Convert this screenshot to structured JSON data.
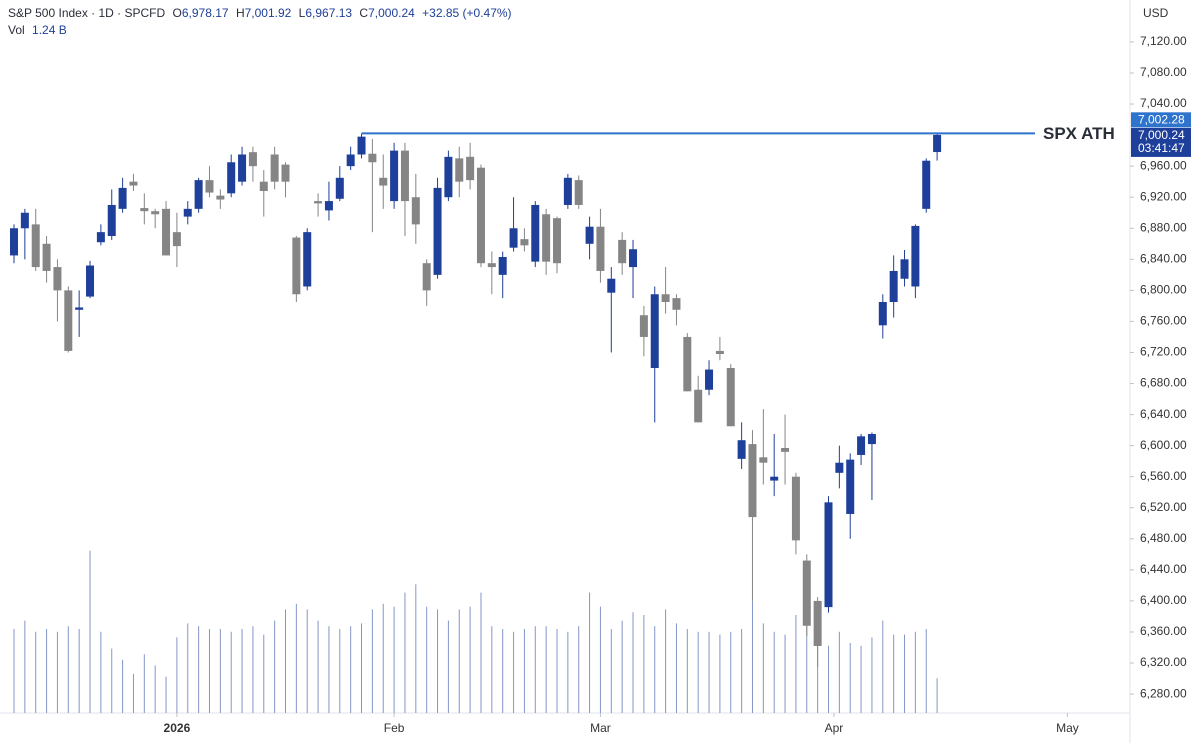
{
  "header": {
    "symbol": "S&P 500 Index · 1D · SPCFD",
    "ohlc": [
      {
        "key": "O",
        "value": "6,978.17"
      },
      {
        "key": "H",
        "value": "7,001.92"
      },
      {
        "key": "L",
        "value": "6,967.13"
      },
      {
        "key": "C",
        "value": "7,000.24"
      }
    ],
    "change": "+32.85 (+0.47%)",
    "vol_key": "Vol",
    "vol_value": "1.24 B",
    "currency": "USD"
  },
  "chart_data": {
    "type": "candlestick",
    "up_color": "#1e3f9a",
    "down_color": "#858585",
    "volume_color": "#8496c8",
    "open": [
      6845,
      6880,
      6885,
      6860,
      6830,
      6800,
      6775,
      6792,
      6862,
      6870,
      6905,
      6940,
      6906,
      6902,
      6905,
      6875,
      6895,
      6905,
      6942,
      6922,
      6925,
      6940,
      6978,
      6940,
      6975,
      6962,
      6868,
      6805,
      6915,
      6903,
      6918,
      6960,
      6975,
      6976,
      6945,
      6915,
      6980,
      6920,
      6835,
      6820,
      6920,
      6970,
      6972,
      6958,
      6835,
      6820,
      6855,
      6866,
      6837,
      6898,
      6893,
      6910,
      6942,
      6860,
      6882,
      6797,
      6865,
      6830,
      6768,
      6700,
      6795,
      6790,
      6740,
      6672,
      6672,
      6722,
      6700,
      6583,
      6602,
      6585,
      6555,
      6597,
      6560,
      6452,
      6400,
      6392,
      6565,
      6512,
      6588,
      6602,
      6755,
      6785,
      6815,
      6805,
      6905,
      6978.17
    ],
    "high": [
      6885,
      6905,
      6905,
      6870,
      6840,
      6805,
      6800,
      6838,
      6885,
      6930,
      6945,
      6950,
      6925,
      6905,
      6915,
      6900,
      6915,
      6945,
      6960,
      6930,
      6975,
      6985,
      6985,
      6955,
      6985,
      6965,
      6870,
      6880,
      6925,
      6940,
      6960,
      6985,
      7002,
      6995,
      6975,
      6990,
      6990,
      6950,
      6840,
      6945,
      6980,
      6985,
      6990,
      6962,
      6850,
      6850,
      6920,
      6880,
      6915,
      6905,
      6895,
      6950,
      6948,
      6895,
      6905,
      6830,
      6875,
      6865,
      6780,
      6805,
      6830,
      6795,
      6745,
      6690,
      6710,
      6740,
      6705,
      6630,
      6620,
      6647,
      6615,
      6640,
      6565,
      6460,
      6405,
      6535,
      6600,
      6590,
      6615,
      6617,
      6795,
      6845,
      6852,
      6885,
      6970,
      7001.92
    ],
    "low": [
      6835,
      6840,
      6825,
      6810,
      6760,
      6720,
      6740,
      6790,
      6858,
      6865,
      6900,
      6928,
      6885,
      6880,
      6845,
      6830,
      6885,
      6900,
      6920,
      6905,
      6920,
      6935,
      6940,
      6895,
      6930,
      6920,
      6785,
      6800,
      6895,
      6890,
      6915,
      6955,
      6970,
      6875,
      6905,
      6905,
      6870,
      6860,
      6780,
      6815,
      6915,
      6920,
      6930,
      6830,
      6795,
      6790,
      6850,
      6850,
      6830,
      6820,
      6822,
      6905,
      6905,
      6840,
      6810,
      6720,
      6820,
      6790,
      6715,
      6630,
      6770,
      6755,
      6670,
      6630,
      6665,
      6710,
      6625,
      6570,
      6400,
      6550,
      6535,
      6550,
      6460,
      6355,
      6315,
      6385,
      6545,
      6480,
      6575,
      6530,
      6738,
      6765,
      6805,
      6790,
      6900,
      6967.13
    ],
    "close": [
      6880,
      6900,
      6830,
      6825,
      6800,
      6722,
      6778,
      6832,
      6875,
      6910,
      6932,
      6935,
      6902,
      6898,
      6845,
      6857,
      6905,
      6942,
      6926,
      6917,
      6965,
      6975,
      6960,
      6928,
      6940,
      6940,
      6795,
      6875,
      6912,
      6915,
      6945,
      6975,
      6998,
      6965,
      6935,
      6980,
      6915,
      6885,
      6800,
      6932,
      6972,
      6940,
      6942,
      6835,
      6830,
      6843,
      6880,
      6858,
      6910,
      6837,
      6835,
      6945,
      6910,
      6882,
      6825,
      6815,
      6835,
      6853,
      6740,
      6795,
      6785,
      6775,
      6670,
      6630,
      6698,
      6718,
      6625,
      6607,
      6508,
      6578,
      6560,
      6592,
      6478,
      6368,
      6342,
      6527,
      6578,
      6582,
      6612,
      6615,
      6785,
      6825,
      6840,
      6883,
      6967,
      7000.24
    ],
    "volume": [
      3.0,
      3.3,
      2.9,
      3.0,
      2.9,
      3.1,
      3.0,
      5.8,
      2.9,
      2.3,
      1.9,
      1.4,
      2.1,
      1.7,
      1.3,
      2.7,
      3.2,
      3.1,
      3.0,
      3.0,
      2.9,
      3.0,
      3.1,
      2.8,
      3.3,
      3.7,
      3.9,
      3.7,
      3.3,
      3.1,
      3.0,
      3.1,
      3.2,
      3.7,
      3.9,
      3.8,
      4.3,
      4.6,
      3.8,
      3.7,
      3.3,
      3.7,
      3.8,
      4.3,
      3.1,
      3.0,
      2.9,
      3.0,
      3.1,
      3.1,
      3.0,
      2.9,
      3.1,
      4.3,
      3.8,
      3.0,
      3.3,
      3.6,
      3.5,
      3.1,
      3.7,
      3.2,
      3.0,
      2.9,
      2.9,
      2.8,
      2.9,
      3.0,
      4.0,
      3.2,
      2.9,
      2.8,
      3.5,
      3.8,
      2.9,
      2.4,
      2.9,
      2.5,
      2.4,
      2.7,
      3.3,
      2.8,
      2.8,
      2.9,
      3.0,
      1.24
    ],
    "ylim": [
      6217,
      7174
    ],
    "yticks": [
      {
        "value": 7120,
        "label": "7,120.00"
      },
      {
        "value": 7080,
        "label": "7,080.00"
      },
      {
        "value": 7040,
        "label": "7,040.00"
      },
      {
        "value": 6960,
        "label": "6,960.00"
      },
      {
        "value": 6920,
        "label": "6,920.00"
      },
      {
        "value": 6880,
        "label": "6,880.00"
      },
      {
        "value": 6840,
        "label": "6,840.00"
      },
      {
        "value": 6800,
        "label": "6,800.00"
      },
      {
        "value": 6760,
        "label": "6,760.00"
      },
      {
        "value": 6720,
        "label": "6,720.00"
      },
      {
        "value": 6680,
        "label": "6,680.00"
      },
      {
        "value": 6640,
        "label": "6,640.00"
      },
      {
        "value": 6600,
        "label": "6,600.00"
      },
      {
        "value": 6560,
        "label": "6,560.00"
      },
      {
        "value": 6520,
        "label": "6,520.00"
      },
      {
        "value": 6480,
        "label": "6,480.00"
      },
      {
        "value": 6440,
        "label": "6,440.00"
      },
      {
        "value": 6400,
        "label": "6,400.00"
      },
      {
        "value": 6360,
        "label": "6,360.00"
      },
      {
        "value": 6320,
        "label": "6,320.00"
      },
      {
        "value": 6280,
        "label": "6,280.00"
      }
    ],
    "xticks": [
      {
        "value": 15,
        "label": "2026"
      },
      {
        "value": 35,
        "label": "Feb"
      },
      {
        "value": 54,
        "label": "Mar"
      },
      {
        "value": 75.5,
        "label": "Apr"
      },
      {
        "value": 97,
        "label": "May"
      }
    ],
    "ath": {
      "value": 7002.28,
      "label": "7,002.28",
      "text": "SPX ATH",
      "start": 32,
      "color": "#2f74cc"
    },
    "last_price": {
      "label": "7,000.24",
      "countdown": "03:41:47"
    }
  }
}
